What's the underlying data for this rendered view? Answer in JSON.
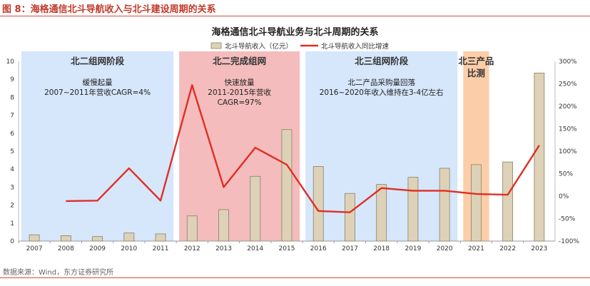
{
  "figure_label": "图 8：海格通信北斗导航收入与北斗建设周期的关系",
  "source_note": "数据来源：Wind，东方证券研究所",
  "chart_data": {
    "type": "bar",
    "title": "海格通信北斗导航业务与北斗周期的关系",
    "categories": [
      "2007",
      "2008",
      "2009",
      "2010",
      "2011",
      "2012",
      "2013",
      "2014",
      "2015",
      "2016",
      "2017",
      "2018",
      "2019",
      "2020",
      "2021",
      "2022",
      "2023"
    ],
    "series": [
      {
        "name": "北斗导航收入（亿元）",
        "type": "bar",
        "axis": "left",
        "color": "#ddd2b8",
        "values": [
          0.35,
          0.3,
          0.25,
          0.45,
          0.4,
          1.4,
          1.75,
          3.6,
          6.2,
          4.15,
          2.65,
          3.15,
          3.55,
          4.05,
          4.25,
          4.4,
          9.35
        ]
      },
      {
        "name": "北斗导航收入同比增速",
        "type": "line",
        "axis": "right",
        "unit": "%",
        "color": "#e02e24",
        "values": [
          null,
          -11,
          -10,
          62,
          -10,
          247,
          20,
          108,
          70,
          -33,
          -36,
          18,
          12,
          12,
          5,
          3,
          113
        ]
      }
    ],
    "left_axis": {
      "min": 0,
      "max": 10,
      "ticks": [
        "0",
        "1",
        "2",
        "3",
        "4",
        "5",
        "6",
        "7",
        "8",
        "9",
        "10"
      ]
    },
    "right_axis": {
      "min": -100,
      "max": 300,
      "ticks": [
        "-100%",
        "-50%",
        "0%",
        "50%",
        "100%",
        "150%",
        "200%",
        "250%",
        "300%"
      ]
    },
    "legend_position": "top-center",
    "phases": [
      {
        "name": "北二组网阶段",
        "note_lines": [
          "缓慢起量",
          "2007~2011年营收CAGR=4%"
        ],
        "from": "2007",
        "to": "2011",
        "color": "#d6e6fb"
      },
      {
        "name": "北二完成组网",
        "note_lines": [
          "快速放量",
          "2011-2015年营收",
          "CAGR=97%"
        ],
        "from": "2012",
        "to": "2015",
        "color": "#f4bcbc"
      },
      {
        "name": "北三组网阶段",
        "note_lines": [
          "北二产品采购量回落",
          "2016~2020年收入维持在3-4亿左右"
        ],
        "from": "2016",
        "to": "2020",
        "color": "#d6e6fb"
      },
      {
        "name_lines": [
          "北三产品",
          "比测"
        ],
        "note_lines": [],
        "from": "2021",
        "to": "2021",
        "color": "#fbcda8"
      }
    ]
  }
}
